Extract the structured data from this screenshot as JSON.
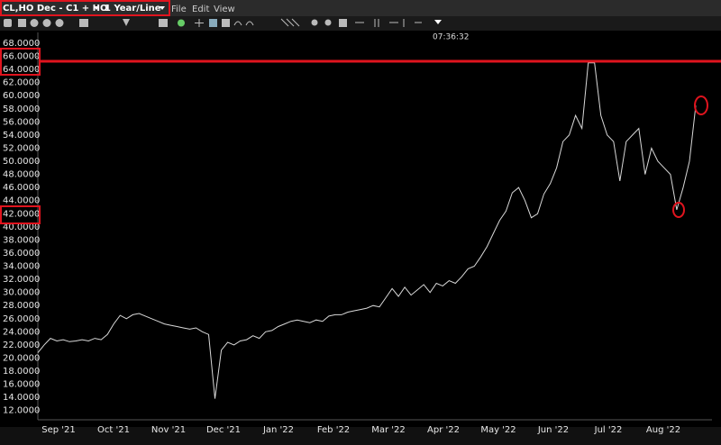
{
  "toolbar": {
    "symbol": "CL,HO Dec - C1 + HO",
    "period": "1 Year/Line",
    "menu": [
      "File",
      "Edit",
      "View"
    ],
    "time": "07:36:32"
  },
  "chart_data": {
    "type": "line",
    "x_labels": [
      "Sep '21",
      "Oct '21",
      "Nov '21",
      "Dec '21",
      "Jan '22",
      "Feb '22",
      "Mar '22",
      "Apr '22",
      "May '22",
      "Jun '22",
      "Jul '22",
      "Aug '22"
    ],
    "series": [
      {
        "color": "#d8d8d8",
        "values": [
          20.8,
          22.0,
          23.0,
          22.6,
          22.8,
          22.5,
          22.6,
          22.8,
          22.6,
          23.0,
          22.8,
          23.6,
          25.2,
          26.5,
          26.0,
          26.6,
          26.8,
          26.4,
          26.0,
          25.6,
          25.2,
          25.0,
          24.8,
          24.6,
          24.4,
          24.6,
          24.0,
          23.6,
          13.8,
          21.2,
          22.4,
          22.0,
          22.6,
          22.8,
          23.4,
          23.0,
          24.0,
          24.2,
          24.8,
          25.2,
          25.6,
          25.8,
          25.6,
          25.4,
          25.8,
          25.6,
          26.4,
          26.6,
          26.6,
          27.0,
          27.2,
          27.4,
          27.6,
          28.0,
          27.8,
          29.2,
          30.6,
          29.4,
          30.8,
          29.6,
          30.4,
          31.2,
          30.0,
          31.4,
          31.0,
          31.8,
          31.4,
          32.4,
          33.6,
          34.0,
          35.4,
          37.0,
          39.0,
          41.0,
          42.4,
          45.2,
          46.0,
          44.0,
          41.4,
          42.0,
          45.0,
          46.6,
          49.0,
          53.0,
          54.0,
          57.0,
          55.0,
          65.0,
          65.0,
          57.0,
          54.0,
          53.0,
          47.0,
          53.0,
          54.0,
          55.0,
          48.0,
          52.0,
          50.0,
          49.0,
          48.0,
          42.6,
          46.0,
          50.0,
          58.5
        ]
      }
    ],
    "ylim": [
      11,
      69
    ],
    "yticks": [
      {
        "value": 12,
        "label": "12.0000"
      },
      {
        "value": 14,
        "label": "14.0000"
      },
      {
        "value": 16,
        "label": "16.0000"
      },
      {
        "value": 18,
        "label": "18.0000"
      },
      {
        "value": 20,
        "label": "20.0000"
      },
      {
        "value": 22,
        "label": "22.0000"
      },
      {
        "value": 24,
        "label": "24.0000"
      },
      {
        "value": 26,
        "label": "26.0000"
      },
      {
        "value": 28,
        "label": "28.0000"
      },
      {
        "value": 30,
        "label": "30.0000"
      },
      {
        "value": 32,
        "label": "32.0000"
      },
      {
        "value": 34,
        "label": "34.0000"
      },
      {
        "value": 36,
        "label": "36.0000"
      },
      {
        "value": 38,
        "label": "38.0000"
      },
      {
        "value": 40,
        "label": "40.0000"
      },
      {
        "value": 42,
        "label": "42.0000"
      },
      {
        "value": 44,
        "label": "44.0000"
      },
      {
        "value": 46,
        "label": "46.0000"
      },
      {
        "value": 48,
        "label": "48.0000"
      },
      {
        "value": 50,
        "label": "50.0000"
      },
      {
        "value": 52,
        "label": "52.0000"
      },
      {
        "value": 54,
        "label": "54.0000"
      },
      {
        "value": 56,
        "label": "56.0000"
      },
      {
        "value": 58,
        "label": "58.0000"
      },
      {
        "value": 60,
        "label": "60.0000"
      },
      {
        "value": 62,
        "label": "62.0000"
      },
      {
        "value": 64,
        "label": "64.0000"
      },
      {
        "value": 66,
        "label": "66.0000"
      },
      {
        "value": 68,
        "label": "68.0000"
      }
    ]
  }
}
